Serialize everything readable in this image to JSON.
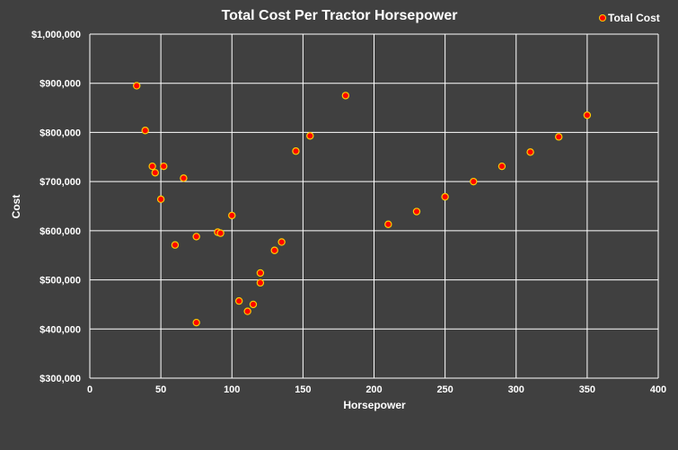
{
  "chart_data": {
    "type": "scatter",
    "title": "Total Cost Per Tractor Horsepower",
    "xlabel": "Horsepower",
    "ylabel": "Cost",
    "xlim": [
      0,
      400
    ],
    "ylim": [
      300000,
      1000000
    ],
    "x_ticks": [
      0,
      50,
      100,
      150,
      200,
      250,
      300,
      350,
      400
    ],
    "y_ticks": [
      300000,
      400000,
      500000,
      600000,
      700000,
      800000,
      900000,
      1000000
    ],
    "x_tick_labels": [
      "0",
      "50",
      "100",
      "150",
      "200",
      "250",
      "300",
      "350",
      "400"
    ],
    "y_tick_labels": [
      "$300,000",
      "$400,000",
      "$500,000",
      "$600,000",
      "$700,000",
      "$800,000",
      "$900,000",
      "$1,000,000"
    ],
    "grid": true,
    "legend_position": "top-right",
    "series": [
      {
        "name": "Total Cost",
        "color": "#ff0000",
        "edge_color": "#ffcc00",
        "points": [
          {
            "x": 33,
            "y": 895000
          },
          {
            "x": 39,
            "y": 804000
          },
          {
            "x": 44,
            "y": 731000
          },
          {
            "x": 46,
            "y": 718000
          },
          {
            "x": 50,
            "y": 664000
          },
          {
            "x": 52,
            "y": 731000
          },
          {
            "x": 60,
            "y": 571000
          },
          {
            "x": 66,
            "y": 707000
          },
          {
            "x": 75,
            "y": 588000
          },
          {
            "x": 75,
            "y": 413000
          },
          {
            "x": 90,
            "y": 597000
          },
          {
            "x": 92,
            "y": 595000
          },
          {
            "x": 100,
            "y": 631000
          },
          {
            "x": 105,
            "y": 457000
          },
          {
            "x": 111,
            "y": 436000
          },
          {
            "x": 115,
            "y": 450000
          },
          {
            "x": 120,
            "y": 514000
          },
          {
            "x": 120,
            "y": 494000
          },
          {
            "x": 130,
            "y": 560000
          },
          {
            "x": 135,
            "y": 577000
          },
          {
            "x": 145,
            "y": 762000
          },
          {
            "x": 155,
            "y": 793000
          },
          {
            "x": 180,
            "y": 875000
          },
          {
            "x": 210,
            "y": 613000
          },
          {
            "x": 230,
            "y": 639000
          },
          {
            "x": 250,
            "y": 669000
          },
          {
            "x": 270,
            "y": 700000
          },
          {
            "x": 290,
            "y": 731000
          },
          {
            "x": 310,
            "y": 760000
          },
          {
            "x": 330,
            "y": 791000
          },
          {
            "x": 350,
            "y": 835000
          }
        ]
      }
    ]
  }
}
